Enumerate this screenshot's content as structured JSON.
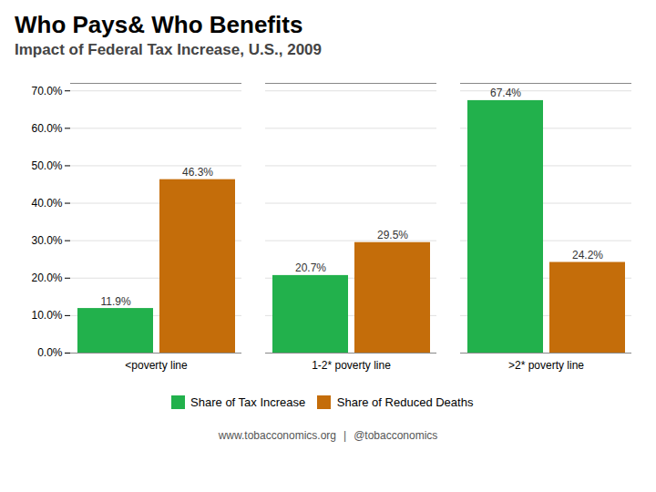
{
  "chart_data": {
    "type": "bar",
    "title": "Who Pays& Who Benefits",
    "subtitle": "Impact of Federal Tax Increase, U.S., 2009",
    "categories": [
      "<poverty line",
      "1-2* poverty line",
      ">2* poverty line"
    ],
    "series": [
      {
        "name": "Share of Tax Increase",
        "color": "#22B14C",
        "values": [
          11.9,
          20.7,
          67.4
        ],
        "value_labels": [
          "11.9%",
          "20.7%",
          "67.4%"
        ]
      },
      {
        "name": "Share of Reduced Deaths",
        "color": "#C46D0A",
        "values": [
          46.3,
          29.5,
          24.2
        ],
        "value_labels": [
          "46.3%",
          "29.5%",
          "24.2%"
        ]
      }
    ],
    "ylim": [
      0,
      72
    ],
    "yticks": [
      {
        "value": 0,
        "label": "0.0%"
      },
      {
        "value": 10,
        "label": "10.0%"
      },
      {
        "value": 20,
        "label": "20.0%"
      },
      {
        "value": 30,
        "label": "30.0%"
      },
      {
        "value": 40,
        "label": "40.0%"
      },
      {
        "value": 50,
        "label": "50.0%"
      },
      {
        "value": 60,
        "label": "60.0%"
      },
      {
        "value": 70,
        "label": "70.0%"
      }
    ],
    "grid": true,
    "legend": "bottom",
    "data_labels": true,
    "annotations": [
      "www.tobacconomics.org",
      "|",
      "@tobacconomics"
    ]
  }
}
